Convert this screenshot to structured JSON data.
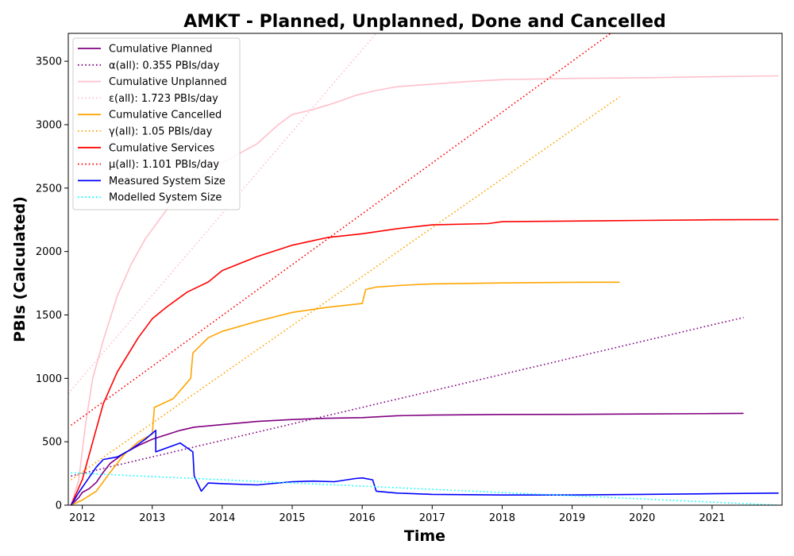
{
  "chart_data": {
    "type": "line",
    "title": "AMKT - Planned, Unplanned, Done  and Cancelled",
    "xlabel": "Time",
    "ylabel": "PBIs (Calculated)",
    "xlim": [
      2011.8,
      2022.0
    ],
    "ylim": [
      0,
      3720
    ],
    "x_ticks": [
      "2012",
      "2013",
      "2014",
      "2015",
      "2016",
      "2017",
      "2018",
      "2019",
      "2020",
      "2021"
    ],
    "x_tick_values": [
      2012,
      2013,
      2014,
      2015,
      2016,
      2017,
      2018,
      2019,
      2020,
      2021
    ],
    "y_ticks": [
      "0",
      "500",
      "1000",
      "1500",
      "2000",
      "2500",
      "3000",
      "3500"
    ],
    "y_tick_values": [
      0,
      500,
      1000,
      1500,
      2000,
      2500,
      3000,
      3500
    ],
    "grid": false,
    "legend_position": "upper-left",
    "series": [
      {
        "name": "Cumulative Planned",
        "color": "#800080",
        "style": "solid",
        "x": [
          2011.84,
          2011.95,
          2012.0,
          2012.1,
          2012.2,
          2012.3,
          2012.4,
          2012.6,
          2012.8,
          2013.0,
          2013.2,
          2013.4,
          2013.6,
          2014.0,
          2014.5,
          2015.0,
          2015.5,
          2016.0,
          2016.5,
          2017.0,
          2018.0,
          2019.0,
          2020.0,
          2021.0,
          2021.45
        ],
        "y": [
          0,
          60,
          100,
          130,
          180,
          260,
          330,
          410,
          470,
          520,
          555,
          590,
          615,
          635,
          660,
          675,
          685,
          690,
          705,
          710,
          715,
          716,
          719,
          722,
          724
        ]
      },
      {
        "name": "α(all): 0.355 PBIs/day",
        "color": "#800080",
        "style": "dotted",
        "x": [
          2011.84,
          2021.45
        ],
        "y": [
          230,
          1480
        ]
      },
      {
        "name": "Cumulative Unplanned",
        "color": "#ffc0cb",
        "style": "solid",
        "x": [
          2011.84,
          2011.95,
          2012.05,
          2012.15,
          2012.3,
          2012.5,
          2012.7,
          2012.9,
          2013.1,
          2013.3,
          2013.6,
          2014.0,
          2014.5,
          2014.8,
          2015.0,
          2015.3,
          2015.6,
          2015.9,
          2016.2,
          2016.5,
          2017.0,
          2017.5,
          2018.0,
          2019.0,
          2020.0,
          2021.0,
          2021.95
        ],
        "y": [
          0,
          200,
          650,
          1000,
          1300,
          1650,
          1900,
          2100,
          2250,
          2400,
          2550,
          2700,
          2850,
          3000,
          3080,
          3120,
          3170,
          3230,
          3270,
          3300,
          3320,
          3340,
          3355,
          3365,
          3370,
          3378,
          3385
        ]
      },
      {
        "name": "ε(all): 1.723 PBIs/day",
        "color": "#ffc0cb",
        "style": "dotted",
        "x": [
          2011.8,
          2016.2
        ],
        "y": [
          880,
          3720
        ]
      },
      {
        "name": "Cumulative Cancelled",
        "color": "#ffa500",
        "style": "solid",
        "x": [
          2011.84,
          2012.0,
          2012.2,
          2012.4,
          2012.6,
          2012.8,
          2013.0,
          2013.03,
          2013.3,
          2013.55,
          2013.58,
          2013.8,
          2014.0,
          2014.5,
          2015.0,
          2015.5,
          2016.0,
          2016.05,
          2016.2,
          2016.6,
          2017.0,
          2018.0,
          2019.0,
          2019.68
        ],
        "y": [
          0,
          40,
          110,
          260,
          400,
          500,
          560,
          770,
          840,
          1000,
          1200,
          1320,
          1370,
          1450,
          1520,
          1560,
          1590,
          1700,
          1720,
          1735,
          1745,
          1752,
          1757,
          1758
        ]
      },
      {
        "name": "γ(all): 1.05 PBIs/day",
        "color": "#ffa500",
        "style": "dotted",
        "x": [
          2011.84,
          2019.68
        ],
        "y": [
          200,
          3220
        ]
      },
      {
        "name": "Cumulative Services",
        "color": "#ff0000",
        "style": "solid",
        "x": [
          2011.84,
          2012.0,
          2012.15,
          2012.3,
          2012.5,
          2012.8,
          2013.0,
          2013.2,
          2013.5,
          2013.8,
          2014.0,
          2014.5,
          2015.0,
          2015.5,
          2016.0,
          2016.5,
          2017.0,
          2017.8,
          2018.0,
          2019.0,
          2020.0,
          2021.0,
          2021.95
        ],
        "y": [
          0,
          200,
          500,
          800,
          1050,
          1320,
          1470,
          1560,
          1680,
          1760,
          1850,
          1960,
          2050,
          2110,
          2140,
          2180,
          2210,
          2220,
          2235,
          2240,
          2245,
          2250,
          2252
        ]
      },
      {
        "name": "μ(all): 1.101 PBIs/day",
        "color": "#ff0000",
        "style": "dotted",
        "x": [
          2011.84,
          2019.55
        ],
        "y": [
          630,
          3720
        ]
      },
      {
        "name": "Measured System Size",
        "color": "#0000ff",
        "style": "solid",
        "x": [
          2011.84,
          2011.95,
          2012.05,
          2012.2,
          2012.3,
          2012.5,
          2012.7,
          2012.9,
          2013.05,
          2013.05,
          2013.2,
          2013.4,
          2013.58,
          2013.6,
          2013.7,
          2013.8,
          2014.0,
          2014.5,
          2015.0,
          2015.3,
          2015.6,
          2015.9,
          2016.0,
          2016.15,
          2016.2,
          2016.5,
          2017.0,
          2018.0,
          2019.0,
          2020.0,
          2021.0,
          2021.95
        ],
        "y": [
          0,
          100,
          180,
          300,
          360,
          380,
          440,
          520,
          590,
          420,
          450,
          490,
          420,
          230,
          110,
          175,
          170,
          160,
          185,
          190,
          185,
          210,
          215,
          200,
          110,
          95,
          85,
          80,
          80,
          85,
          90,
          95
        ]
      },
      {
        "name": "Modelled System Size",
        "color": "#00ffff",
        "style": "dotted",
        "x": [
          2011.84,
          2021.95
        ],
        "y": [
          255,
          0
        ]
      }
    ]
  }
}
